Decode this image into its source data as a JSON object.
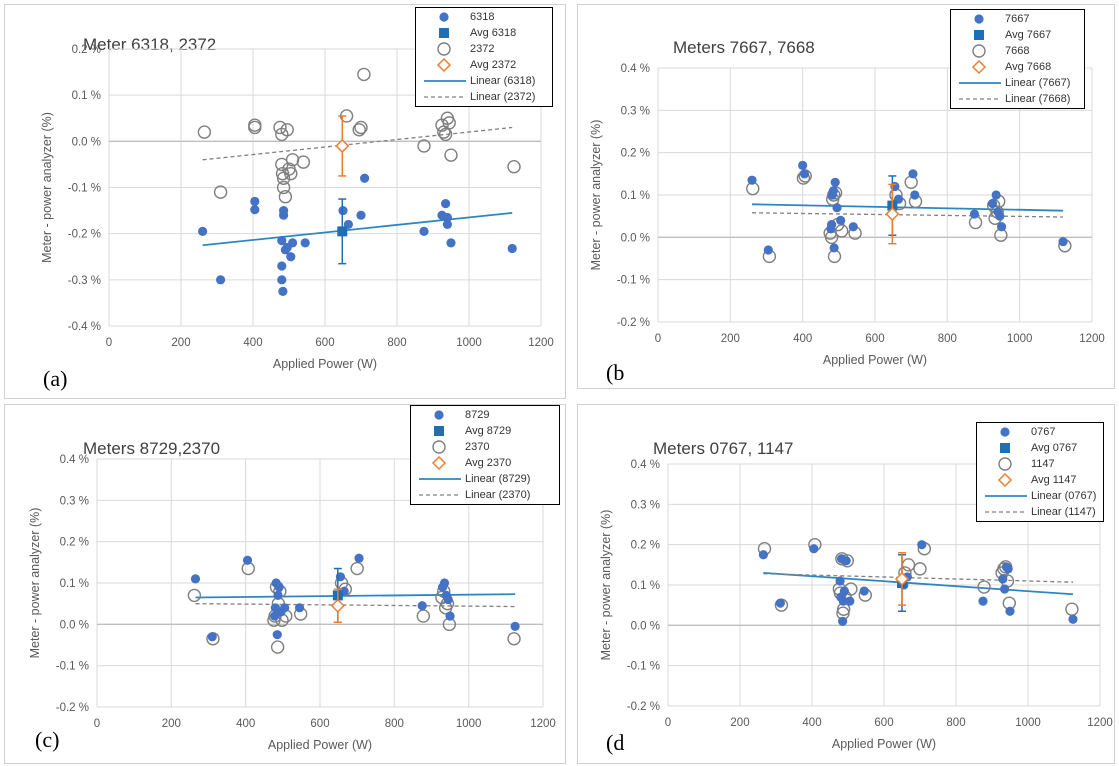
{
  "colors": {
    "blue": "#4472c4",
    "avg_blue": "#1f6fb5",
    "gray_marker": "#7f7f7f",
    "orange": "#ed7d31",
    "gray_line": "#808080",
    "trend_blue": "#2e86c1"
  },
  "chart_data": [
    {
      "type": "scatter",
      "panel_label": "(a)",
      "title": "Meter 6318, 2372",
      "xlabel": "Applied Power (W)",
      "ylabel": "Meter - power analyzer (%)",
      "xlim": [
        0,
        1200
      ],
      "ylim": [
        -0.4,
        0.2
      ],
      "xticks": [
        "0",
        "200",
        "400",
        "600",
        "800",
        "1000",
        "1200"
      ],
      "yticks": [
        "-0.4 %",
        "-0.3 %",
        "-0.2 %",
        "-0.1 %",
        "0.0 %",
        "0.1 %",
        "0.2 %"
      ],
      "grid": true,
      "legend_position": "top-right",
      "legend": [
        "6318",
        "Avg 6318",
        "2372",
        "Avg 2372",
        "Linear (6318)",
        "Linear (2372)"
      ],
      "series": [
        {
          "name": "6318",
          "marker": "filled-circle",
          "x": [
            260,
            310,
            405,
            405,
            480,
            480,
            480,
            483,
            485,
            485,
            490,
            495,
            505,
            510,
            545,
            650,
            665,
            700,
            710,
            875,
            925,
            935,
            940,
            940,
            950,
            1120
          ],
          "y": [
            -0.195,
            -0.3,
            -0.13,
            -0.148,
            -0.215,
            -0.27,
            -0.3,
            -0.325,
            -0.16,
            -0.15,
            -0.235,
            -0.23,
            -0.25,
            -0.22,
            -0.22,
            -0.15,
            -0.18,
            -0.16,
            -0.08,
            -0.195,
            -0.16,
            -0.135,
            -0.165,
            -0.18,
            -0.22,
            -0.232
          ]
        },
        {
          "name": "Avg 6318",
          "marker": "filled-square",
          "x": [
            648
          ],
          "y": [
            -0.195
          ],
          "error": [
            0.07
          ]
        },
        {
          "name": "2372",
          "marker": "open-circle",
          "x": [
            265,
            310,
            405,
            405,
            475,
            480,
            480,
            482,
            485,
            485,
            490,
            495,
            500,
            505,
            510,
            540,
            660,
            695,
            700,
            708,
            875,
            925,
            930,
            935,
            940,
            945,
            950,
            1125
          ],
          "y": [
            0.02,
            -0.11,
            0.035,
            0.03,
            0.03,
            0.015,
            -0.05,
            -0.07,
            -0.08,
            -0.1,
            -0.12,
            0.025,
            -0.06,
            -0.07,
            -0.04,
            -0.045,
            0.055,
            0.025,
            0.03,
            0.145,
            -0.01,
            0.035,
            0.02,
            0.015,
            0.05,
            0.04,
            -0.03,
            -0.055
          ]
        },
        {
          "name": "Avg 2372",
          "marker": "open-diamond",
          "x": [
            648
          ],
          "y": [
            -0.01
          ],
          "error": [
            0.065
          ]
        },
        {
          "name": "Linear (6318)",
          "line": "solid",
          "x": [
            260,
            1120
          ],
          "y": [
            -0.225,
            -0.155
          ]
        },
        {
          "name": "Linear (2372)",
          "line": "dashed",
          "x": [
            260,
            1120
          ],
          "y": [
            -0.04,
            0.03
          ]
        }
      ]
    },
    {
      "type": "scatter",
      "panel_label": "(b",
      "title": "Meters 7667, 7668",
      "xlabel": "Applied Power (W)",
      "ylabel": "Meter - power analyzer (%)",
      "xlim": [
        0,
        1200
      ],
      "ylim": [
        -0.2,
        0.4
      ],
      "xticks": [
        "0",
        "200",
        "400",
        "600",
        "800",
        "1000",
        "1200"
      ],
      "yticks": [
        "-0.2 %",
        "-0.1 %",
        "0.0 %",
        "0.1 %",
        "0.2 %",
        "0.3 %",
        "0.4 %"
      ],
      "grid": true,
      "legend_position": "top-right",
      "legend": [
        "7667",
        "Avg 7667",
        "7668",
        "Avg 7668",
        "Linear (7667)",
        "Linear (7668)"
      ],
      "series": [
        {
          "name": "7667",
          "marker": "filled-circle",
          "x": [
            260,
            305,
            400,
            405,
            478,
            480,
            482,
            485,
            487,
            490,
            495,
            505,
            540,
            655,
            665,
            705,
            710,
            875,
            925,
            935,
            940,
            945,
            950,
            1120
          ],
          "y": [
            0.135,
            -0.03,
            0.17,
            0.15,
            0.02,
            0.03,
            0.1,
            0.11,
            -0.025,
            0.13,
            0.07,
            0.04,
            0.025,
            0.12,
            0.09,
            0.15,
            0.1,
            0.055,
            0.08,
            0.1,
            0.06,
            0.05,
            0.025,
            -0.01
          ]
        },
        {
          "name": "Avg 7667",
          "marker": "filled-square",
          "x": [
            648
          ],
          "y": [
            0.075
          ],
          "error": [
            0.07
          ]
        },
        {
          "name": "7668",
          "marker": "open-circle",
          "x": [
            262,
            308,
            402,
            407,
            476,
            480,
            483,
            486,
            488,
            491,
            497,
            508,
            545,
            658,
            668,
            700,
            712,
            878,
            928,
            932,
            938,
            942,
            948,
            1125
          ],
          "y": [
            0.115,
            -0.045,
            0.14,
            0.145,
            0.01,
            0.0,
            0.09,
            0.1,
            -0.045,
            0.105,
            0.03,
            0.015,
            0.01,
            0.1,
            0.08,
            0.13,
            0.085,
            0.035,
            0.075,
            0.045,
            0.06,
            0.085,
            0.005,
            -0.02
          ]
        },
        {
          "name": "Avg 7668",
          "marker": "open-diamond",
          "x": [
            648
          ],
          "y": [
            0.055
          ],
          "error": [
            0.07
          ]
        },
        {
          "name": "Linear (7667)",
          "line": "solid",
          "x": [
            260,
            1120
          ],
          "y": [
            0.078,
            0.063
          ]
        },
        {
          "name": "Linear (7668)",
          "line": "dashed",
          "x": [
            260,
            1120
          ],
          "y": [
            0.058,
            0.048
          ]
        }
      ]
    },
    {
      "type": "scatter",
      "panel_label": "(c)",
      "title": "Meters 8729,2370",
      "xlabel": "Applied Power (W)",
      "ylabel": "Meter - power analyzer (%)",
      "xlim": [
        0,
        1200
      ],
      "ylim": [
        -0.2,
        0.4
      ],
      "xticks": [
        "0",
        "200",
        "400",
        "600",
        "800",
        "1000",
        "1200"
      ],
      "yticks": [
        "-0.2 %",
        "-0.1 %",
        "0.0 %",
        "0.1 %",
        "0.2 %",
        "0.3 %",
        "0.4 %"
      ],
      "grid": true,
      "legend_position": "top-right",
      "legend": [
        "8729",
        "Avg 8729",
        "2370",
        "Avg 2370",
        "Linear (8729)",
        "Linear (2370)"
      ],
      "series": [
        {
          "name": "8729",
          "marker": "filled-circle",
          "x": [
            265,
            310,
            405,
            478,
            480,
            482,
            485,
            487,
            490,
            495,
            505,
            545,
            655,
            665,
            705,
            875,
            930,
            935,
            940,
            945,
            950,
            1125
          ],
          "y": [
            0.11,
            -0.03,
            0.155,
            0.02,
            0.04,
            0.1,
            -0.025,
            0.07,
            0.09,
            0.03,
            0.04,
            0.04,
            0.115,
            0.08,
            0.16,
            0.045,
            0.09,
            0.1,
            0.07,
            0.06,
            0.02,
            -0.005
          ]
        },
        {
          "name": "Avg 8729",
          "marker": "filled-square",
          "x": [
            648
          ],
          "y": [
            0.07
          ],
          "error": [
            0.065
          ]
        },
        {
          "name": "2370",
          "marker": "open-circle",
          "x": [
            262,
            312,
            407,
            476,
            479,
            483,
            486,
            488,
            492,
            498,
            508,
            548,
            658,
            668,
            700,
            878,
            928,
            933,
            938,
            943,
            948,
            1122
          ],
          "y": [
            0.07,
            -0.035,
            0.135,
            0.01,
            0.02,
            0.09,
            -0.055,
            0.05,
            0.08,
            0.01,
            0.02,
            0.025,
            0.1,
            0.085,
            0.135,
            0.02,
            0.065,
            0.08,
            0.04,
            0.05,
            0.0,
            -0.035
          ]
        },
        {
          "name": "Avg 2370",
          "marker": "open-diamond",
          "x": [
            648
          ],
          "y": [
            0.045
          ],
          "error": [
            0.04
          ]
        },
        {
          "name": "Linear (8729)",
          "line": "solid",
          "x": [
            265,
            1125
          ],
          "y": [
            0.065,
            0.073
          ]
        },
        {
          "name": "Linear (2370)",
          "line": "dashed",
          "x": [
            265,
            1125
          ],
          "y": [
            0.05,
            0.043
          ]
        }
      ]
    },
    {
      "type": "scatter",
      "panel_label": "(d",
      "title": "Meters 0767, 1147",
      "xlabel": "Applied Power (W)",
      "ylabel": "Meter - power analyzer (%)",
      "xlim": [
        0,
        1200
      ],
      "ylim": [
        -0.2,
        0.4
      ],
      "xticks": [
        "0",
        "200",
        "400",
        "600",
        "800",
        "1000",
        "1200"
      ],
      "yticks": [
        "-0.2 %",
        "-0.1 %",
        "0.0 %",
        "0.1 %",
        "0.2 %",
        "0.3 %",
        "0.4 %"
      ],
      "grid": true,
      "legend_position": "top-right",
      "legend": [
        "0767",
        "Avg 0767",
        "1147",
        "Avg 1147",
        "Linear (0767)",
        "Linear (1147)"
      ],
      "series": [
        {
          "name": "0767",
          "marker": "filled-circle",
          "x": [
            265,
            312,
            405,
            478,
            480,
            482,
            485,
            487,
            490,
            495,
            505,
            545,
            655,
            665,
            705,
            875,
            930,
            935,
            940,
            945,
            950,
            1125
          ],
          "y": [
            0.175,
            0.055,
            0.19,
            0.11,
            0.07,
            0.165,
            0.01,
            0.06,
            0.085,
            0.16,
            0.06,
            0.085,
            0.1,
            0.12,
            0.2,
            0.06,
            0.115,
            0.09,
            0.145,
            0.14,
            0.035,
            0.015
          ]
        },
        {
          "name": "Avg 0767",
          "marker": "filled-square",
          "x": [
            650
          ],
          "y": [
            0.105
          ],
          "error": [
            0.07
          ]
        },
        {
          "name": "1147",
          "marker": "open-circle",
          "x": [
            268,
            315,
            408,
            476,
            479,
            483,
            486,
            488,
            492,
            498,
            508,
            548,
            658,
            668,
            700,
            712,
            878,
            928,
            933,
            938,
            943,
            948,
            1122
          ],
          "y": [
            0.19,
            0.05,
            0.2,
            0.09,
            0.08,
            0.165,
            0.03,
            0.04,
            0.07,
            0.16,
            0.09,
            0.075,
            0.13,
            0.15,
            0.14,
            0.19,
            0.095,
            0.13,
            0.14,
            0.145,
            0.11,
            0.055,
            0.04
          ]
        },
        {
          "name": "Avg 1147",
          "marker": "open-diamond",
          "x": [
            650
          ],
          "y": [
            0.115
          ],
          "error": [
            0.065
          ]
        },
        {
          "name": "Linear (0767)",
          "line": "solid",
          "x": [
            265,
            1125
          ],
          "y": [
            0.13,
            0.077
          ]
        },
        {
          "name": "Linear (1147)",
          "line": "dashed",
          "x": [
            265,
            1125
          ],
          "y": [
            0.128,
            0.107
          ]
        }
      ]
    }
  ]
}
